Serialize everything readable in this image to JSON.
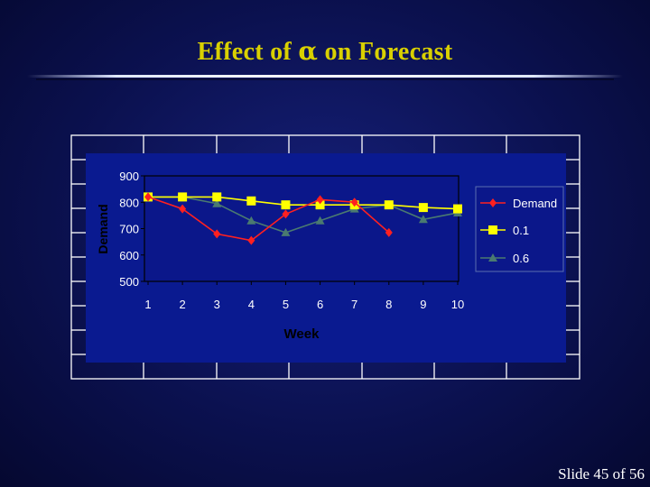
{
  "slide": {
    "title_prefix": "Effect of ",
    "title_symbol": "α",
    "title_suffix": " on Forecast",
    "footer": "Slide 45 of 56"
  },
  "colors": {
    "title": "#d9d000",
    "plot_background": "#0a1a90",
    "demand": "#ff2020",
    "alpha_01": "#ffff00",
    "alpha_06": "#4a7a70"
  },
  "chart_data": {
    "type": "line",
    "title": "",
    "xlabel": "Week",
    "ylabel": "Demand",
    "x": [
      1,
      2,
      3,
      4,
      5,
      6,
      7,
      8,
      9,
      10
    ],
    "ylim": [
      500,
      900
    ],
    "yticks": [
      500,
      600,
      700,
      800,
      900
    ],
    "grid": false,
    "legend_position": "right",
    "series": [
      {
        "name": "Demand",
        "marker": "diamond",
        "color": "#ff2020",
        "values": [
          820,
          775,
          680,
          655,
          755,
          810,
          800,
          685,
          null,
          null
        ]
      },
      {
        "name": "0.1",
        "marker": "square",
        "color": "#ffff00",
        "values": [
          820,
          820,
          820,
          805,
          790,
          790,
          790,
          790,
          780,
          775
        ]
      },
      {
        "name": "0.6",
        "marker": "triangle",
        "color": "#4a7a70",
        "values": [
          820,
          820,
          795,
          730,
          685,
          730,
          775,
          790,
          735,
          760
        ]
      }
    ]
  }
}
